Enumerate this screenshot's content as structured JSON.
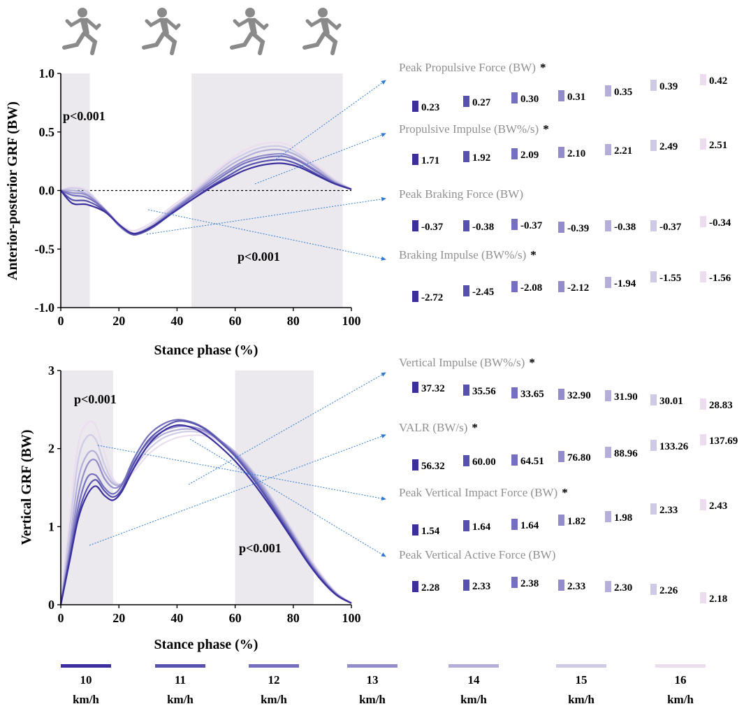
{
  "colors": {
    "speeds": [
      "#3a2f9c",
      "#5651ad",
      "#7470bd",
      "#938ccb",
      "#b3afd9",
      "#cecbe6",
      "#ebdcee"
    ],
    "shade": "#ebe8ee",
    "metric_label": "#909090",
    "arrow": "#2e7bd0",
    "axis": "#000000"
  },
  "legend": {
    "unit": "km/h",
    "items": [
      "10",
      "11",
      "12",
      "13",
      "14",
      "15",
      "16"
    ]
  },
  "chart_data": [
    {
      "type": "line",
      "id": "ap",
      "ylabel": "Anterior-posterior GRF (BW)",
      "xlabel": "Stance phase (%)",
      "xlim": [
        0,
        100
      ],
      "ylim": [
        -1.0,
        1.0
      ],
      "xticks": [
        "0",
        "20",
        "40",
        "60",
        "80",
        "100"
      ],
      "yticks": [
        "-1.0",
        "-0.5",
        "0.0",
        "0.5",
        "1.0"
      ],
      "zero_line": true,
      "shaded_regions": [
        [
          0,
          10
        ],
        [
          45,
          97
        ]
      ],
      "annotations": [
        {
          "text": "p<0.001",
          "x": 3,
          "y": 0.8
        },
        {
          "text": "p<0.001",
          "x": 61,
          "y": -0.68
        }
      ],
      "series": [
        {
          "name": "10",
          "x": [
            0,
            4,
            9,
            15,
            20,
            24,
            27,
            32,
            38,
            45,
            52,
            58,
            63,
            68,
            73,
            77,
            82,
            88,
            94,
            100
          ],
          "y": [
            0,
            -0.11,
            -0.12,
            -0.18,
            -0.29,
            -0.36,
            -0.36,
            -0.3,
            -0.2,
            -0.08,
            0.03,
            0.11,
            0.17,
            0.21,
            0.23,
            0.23,
            0.2,
            0.13,
            0.06,
            0.01
          ]
        },
        {
          "name": "11",
          "x": [
            0,
            4,
            9,
            15,
            20,
            24,
            27,
            32,
            38,
            45,
            52,
            58,
            63,
            68,
            73,
            77,
            82,
            88,
            94,
            100
          ],
          "y": [
            0,
            -0.08,
            -0.09,
            -0.17,
            -0.29,
            -0.37,
            -0.37,
            -0.31,
            -0.2,
            -0.08,
            0.04,
            0.13,
            0.2,
            0.24,
            0.26,
            0.26,
            0.22,
            0.14,
            0.06,
            0.01
          ]
        },
        {
          "name": "12",
          "x": [
            0,
            4,
            9,
            15,
            20,
            24,
            27,
            32,
            38,
            45,
            52,
            58,
            63,
            68,
            73,
            77,
            82,
            88,
            94,
            100
          ],
          "y": [
            0,
            -0.04,
            -0.06,
            -0.16,
            -0.29,
            -0.36,
            -0.36,
            -0.3,
            -0.19,
            -0.06,
            0.06,
            0.16,
            0.23,
            0.27,
            0.29,
            0.29,
            0.25,
            0.16,
            0.07,
            0.01
          ]
        },
        {
          "name": "13",
          "x": [
            0,
            4,
            9,
            15,
            20,
            24,
            27,
            32,
            38,
            45,
            52,
            58,
            63,
            68,
            73,
            77,
            82,
            88,
            94,
            100
          ],
          "y": [
            0,
            -0.02,
            -0.04,
            -0.16,
            -0.3,
            -0.37,
            -0.37,
            -0.3,
            -0.18,
            -0.05,
            0.08,
            0.18,
            0.25,
            0.29,
            0.31,
            0.31,
            0.26,
            0.17,
            0.07,
            0.01
          ]
        },
        {
          "name": "14",
          "x": [
            0,
            4,
            9,
            15,
            20,
            24,
            27,
            32,
            38,
            45,
            52,
            58,
            63,
            68,
            73,
            77,
            82,
            88,
            94,
            100
          ],
          "y": [
            0,
            0.0,
            -0.03,
            -0.16,
            -0.3,
            -0.37,
            -0.36,
            -0.29,
            -0.17,
            -0.04,
            0.1,
            0.21,
            0.28,
            0.33,
            0.35,
            0.34,
            0.29,
            0.19,
            0.08,
            0.01
          ]
        },
        {
          "name": "15",
          "x": [
            0,
            4,
            9,
            15,
            20,
            24,
            27,
            32,
            38,
            45,
            52,
            58,
            63,
            68,
            73,
            77,
            82,
            88,
            94,
            100
          ],
          "y": [
            0,
            0.02,
            -0.01,
            -0.16,
            -0.3,
            -0.36,
            -0.35,
            -0.28,
            -0.16,
            -0.03,
            0.12,
            0.24,
            0.31,
            0.36,
            0.38,
            0.37,
            0.31,
            0.2,
            0.09,
            0.01
          ]
        },
        {
          "name": "16",
          "x": [
            0,
            4,
            9,
            15,
            20,
            24,
            27,
            32,
            38,
            45,
            52,
            58,
            63,
            68,
            73,
            77,
            82,
            88,
            94,
            100
          ],
          "y": [
            0,
            0.03,
            0.0,
            -0.15,
            -0.28,
            -0.34,
            -0.33,
            -0.26,
            -0.14,
            -0.01,
            0.14,
            0.26,
            0.34,
            0.39,
            0.41,
            0.4,
            0.34,
            0.22,
            0.1,
            0.01
          ]
        }
      ]
    },
    {
      "type": "line",
      "id": "vert",
      "ylabel": "Vertical GRF (BW)",
      "xlabel": "Stance phase (%)",
      "xlim": [
        0,
        100
      ],
      "ylim": [
        0,
        3
      ],
      "xticks": [
        "0",
        "20",
        "40",
        "60",
        "80",
        "100"
      ],
      "yticks": [
        "0",
        "1",
        "2",
        "3"
      ],
      "zero_line": false,
      "shaded_regions": [
        [
          0,
          18
        ],
        [
          60,
          87
        ]
      ],
      "annotations": [
        {
          "text": "p<0.001",
          "x": 5,
          "y": 2.6
        },
        {
          "text": "p<0.001",
          "x": 62,
          "y": 0.75
        }
      ],
      "series": [
        {
          "name": "10",
          "x": [
            0,
            3,
            6,
            9,
            12,
            15,
            18,
            21,
            25,
            30,
            35,
            40,
            45,
            50,
            55,
            60,
            65,
            70,
            75,
            80,
            85,
            90,
            95,
            100
          ],
          "y": [
            0,
            0.55,
            1.1,
            1.4,
            1.52,
            1.4,
            1.34,
            1.45,
            1.74,
            2.04,
            2.22,
            2.3,
            2.27,
            2.17,
            2.02,
            1.84,
            1.62,
            1.37,
            1.1,
            0.82,
            0.54,
            0.3,
            0.12,
            0.02
          ]
        },
        {
          "name": "11",
          "x": [
            0,
            3,
            6,
            9,
            12,
            15,
            18,
            21,
            25,
            30,
            35,
            40,
            45,
            50,
            55,
            60,
            65,
            70,
            75,
            80,
            85,
            90,
            95,
            100
          ],
          "y": [
            0,
            0.58,
            1.15,
            1.48,
            1.6,
            1.46,
            1.38,
            1.48,
            1.8,
            2.1,
            2.26,
            2.35,
            2.33,
            2.24,
            2.08,
            1.9,
            1.67,
            1.41,
            1.13,
            0.84,
            0.55,
            0.31,
            0.12,
            0.02
          ]
        },
        {
          "name": "12",
          "x": [
            0,
            3,
            6,
            9,
            12,
            15,
            18,
            21,
            25,
            30,
            35,
            40,
            45,
            50,
            55,
            60,
            65,
            70,
            75,
            80,
            85,
            90,
            95,
            100
          ],
          "y": [
            0,
            0.62,
            1.25,
            1.62,
            1.66,
            1.5,
            1.42,
            1.53,
            1.86,
            2.16,
            2.31,
            2.37,
            2.34,
            2.25,
            2.1,
            1.92,
            1.69,
            1.43,
            1.15,
            0.86,
            0.57,
            0.32,
            0.13,
            0.02
          ]
        },
        {
          "name": "13",
          "x": [
            0,
            3,
            6,
            9,
            12,
            15,
            18,
            21,
            25,
            30,
            35,
            40,
            45,
            50,
            55,
            60,
            65,
            70,
            75,
            80,
            85,
            90,
            95,
            100
          ],
          "y": [
            0,
            0.68,
            1.4,
            1.78,
            1.85,
            1.62,
            1.5,
            1.55,
            1.82,
            2.08,
            2.22,
            2.28,
            2.28,
            2.22,
            2.09,
            1.93,
            1.72,
            1.46,
            1.18,
            0.88,
            0.58,
            0.33,
            0.13,
            0.02
          ]
        },
        {
          "name": "14",
          "x": [
            0,
            3,
            6,
            9,
            12,
            15,
            18,
            21,
            25,
            30,
            35,
            40,
            45,
            50,
            55,
            60,
            65,
            70,
            75,
            80,
            85,
            90,
            95,
            100
          ],
          "y": [
            0,
            0.78,
            1.6,
            1.92,
            1.95,
            1.7,
            1.55,
            1.55,
            1.78,
            2.03,
            2.18,
            2.24,
            2.25,
            2.21,
            2.1,
            1.95,
            1.74,
            1.49,
            1.2,
            0.9,
            0.6,
            0.34,
            0.14,
            0.02
          ]
        },
        {
          "name": "15",
          "x": [
            0,
            3,
            6,
            9,
            12,
            15,
            18,
            21,
            25,
            30,
            35,
            40,
            45,
            50,
            55,
            60,
            65,
            70,
            75,
            80,
            85,
            90,
            95,
            100
          ],
          "y": [
            0,
            0.95,
            1.85,
            2.15,
            2.12,
            1.8,
            1.58,
            1.55,
            1.74,
            1.98,
            2.13,
            2.2,
            2.22,
            2.19,
            2.1,
            1.96,
            1.76,
            1.51,
            1.23,
            0.92,
            0.62,
            0.35,
            0.14,
            0.02
          ]
        },
        {
          "name": "16",
          "x": [
            0,
            3,
            6,
            9,
            12,
            15,
            18,
            21,
            25,
            30,
            35,
            40,
            45,
            50,
            55,
            60,
            65,
            70,
            75,
            80,
            85,
            90,
            95,
            100
          ],
          "y": [
            0,
            1.1,
            2.05,
            2.32,
            2.3,
            1.95,
            1.62,
            1.55,
            1.7,
            1.92,
            2.06,
            2.14,
            2.17,
            2.16,
            2.08,
            1.95,
            1.76,
            1.52,
            1.24,
            0.94,
            0.64,
            0.37,
            0.15,
            0.02
          ]
        }
      ]
    }
  ],
  "metrics": [
    {
      "label": "Peak Propulsive Force (BW)",
      "star": "*",
      "values": [
        "0.23",
        "0.27",
        "0.30",
        "0.31",
        "0.35",
        "0.39",
        "0.42"
      ]
    },
    {
      "label": "Propulsive Impulse (BW%/s)",
      "star": "*",
      "values": [
        "1.71",
        "1.92",
        "2.09",
        "2.10",
        "2.21",
        "2.49",
        "2.51"
      ]
    },
    {
      "label": "Peak Braking Force (BW)",
      "star": "",
      "values": [
        "-0.37",
        "-0.38",
        "-0.37",
        "-0.39",
        "-0.38",
        "-0.37",
        "-0.34"
      ]
    },
    {
      "label": "Braking Impulse (BW%/s)",
      "star": "*",
      "values": [
        "-2.72",
        "-2.45",
        "-2.08",
        "-2.12",
        "-1.94",
        "-1.55",
        "-1.56"
      ]
    },
    {
      "label": "Vertical Impulse (BW%/s)",
      "star": "*",
      "values": [
        "37.32",
        "35.56",
        "33.65",
        "32.90",
        "31.90",
        "30.01",
        "28.83"
      ]
    },
    {
      "label": "VALR (BW/s)",
      "star": "*",
      "values": [
        "56.32",
        "60.00",
        "64.51",
        "76.80",
        "88.96",
        "133.26",
        "137.69"
      ]
    },
    {
      "label": "Peak Vertical Impact Force (BW)",
      "star": "*",
      "values": [
        "1.54",
        "1.64",
        "1.64",
        "1.82",
        "1.98",
        "2.33",
        "2.43"
      ]
    },
    {
      "label": "Peak Vertical Active Force (BW)",
      "star": "",
      "values": [
        "2.28",
        "2.33",
        "2.38",
        "2.33",
        "2.30",
        "2.26",
        "2.18"
      ]
    }
  ],
  "icons": [
    "runner-icon",
    "runner-icon",
    "runner-icon",
    "runner-icon"
  ]
}
